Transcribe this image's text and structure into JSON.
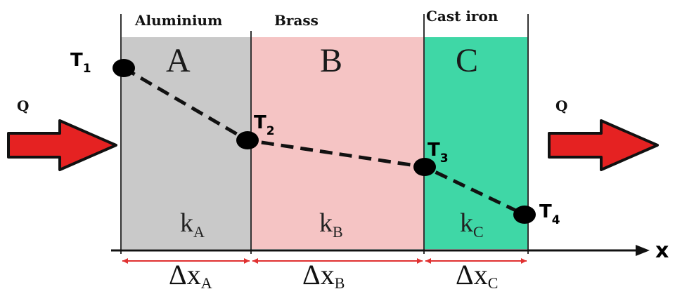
{
  "materials": {
    "a_name": "Aluminium",
    "b_name": "Brass",
    "c_name": "Cast iron"
  },
  "layers": {
    "a_letter": "A",
    "b_letter": "B",
    "c_letter": "C"
  },
  "heat_flow": {
    "in_label": "Q",
    "out_label": "Q"
  },
  "temperatures": {
    "t1": {
      "base": "T",
      "sub": "1"
    },
    "t2": {
      "base": "T",
      "sub": "2"
    },
    "t3": {
      "base": "T",
      "sub": "3"
    },
    "t4": {
      "base": "T",
      "sub": "4"
    }
  },
  "conductivities": {
    "a": {
      "base": "k",
      "sub": "A"
    },
    "b": {
      "base": "k",
      "sub": "B"
    },
    "c": {
      "base": "k",
      "sub": "C"
    }
  },
  "thicknesses": {
    "a": {
      "base": "Δx",
      "sub": "A"
    },
    "b": {
      "base": "Δx",
      "sub": "B"
    },
    "c": {
      "base": "Δx",
      "sub": "C"
    }
  },
  "axis": {
    "label": "x"
  },
  "colors": {
    "layer_a": "#c9c9c9",
    "layer_b": "#f5c4c4",
    "layer_c": "#3fd7a6",
    "arrow_fill": "#e52222",
    "dimension_line": "#e03030"
  }
}
